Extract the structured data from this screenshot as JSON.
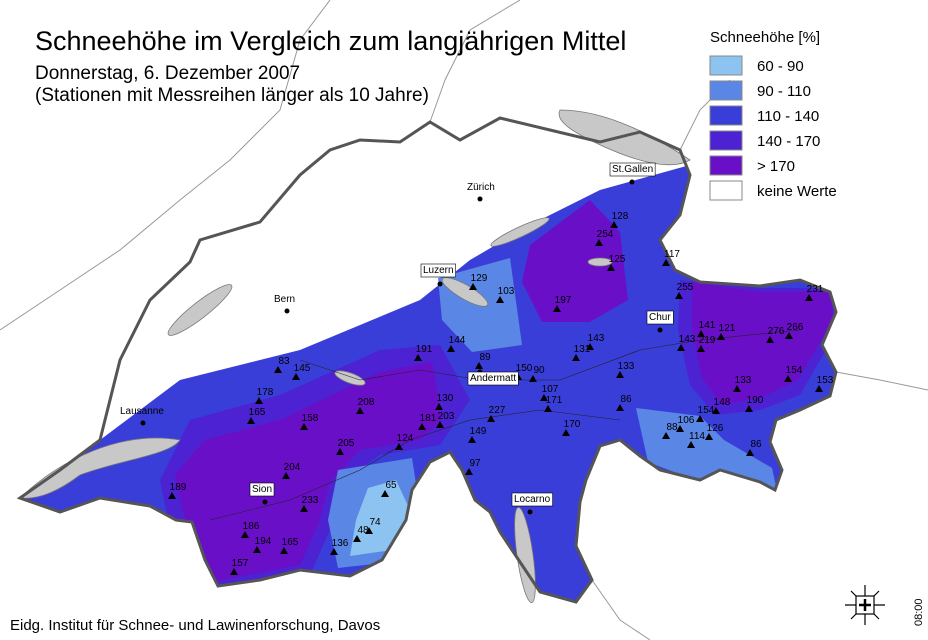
{
  "title": "Schneehöhe im Vergleich zum langjährigen Mittel",
  "subtitle_date": "Donnerstag, 6. Dezember 2007",
  "subtitle_note": "(Stationen mit Messreihen länger als 10 Jahre)",
  "legend": {
    "title": "Schneehöhe [%]",
    "items": [
      {
        "label": "60 - 90",
        "color": "#8cc3f0"
      },
      {
        "label": "90 - 110",
        "color": "#5a86e6"
      },
      {
        "label": "110 - 140",
        "color": "#3a3ed8"
      },
      {
        "label": "140 - 170",
        "color": "#4c22d2"
      },
      {
        "label": "> 170",
        "color": "#6a0fc8"
      },
      {
        "label": "keine Werte",
        "color": "#ffffff"
      }
    ]
  },
  "cities": [
    "St.Gallen",
    "Zürich",
    "Luzern",
    "Chur",
    "Bern",
    "Andermatt",
    "Lausanne",
    "Sion",
    "Locarno"
  ],
  "stations": [
    128,
    254,
    125,
    117,
    197,
    129,
    103,
    255,
    231,
    143,
    131,
    141,
    121,
    143,
    219,
    276,
    266,
    191,
    144,
    83,
    145,
    89,
    150,
    90,
    133,
    178,
    107,
    154,
    153,
    133,
    190,
    148,
    154,
    165,
    158,
    208,
    130,
    171,
    86,
    181,
    203,
    227,
    106,
    88,
    126,
    114,
    170,
    149,
    124,
    205,
    86,
    97,
    204,
    189,
    65,
    233,
    74,
    48,
    186,
    194,
    165,
    136,
    157
  ],
  "footer": "Eidg. Institut für Schnee- und Lawinenforschung, Davos",
  "time": "08:00"
}
